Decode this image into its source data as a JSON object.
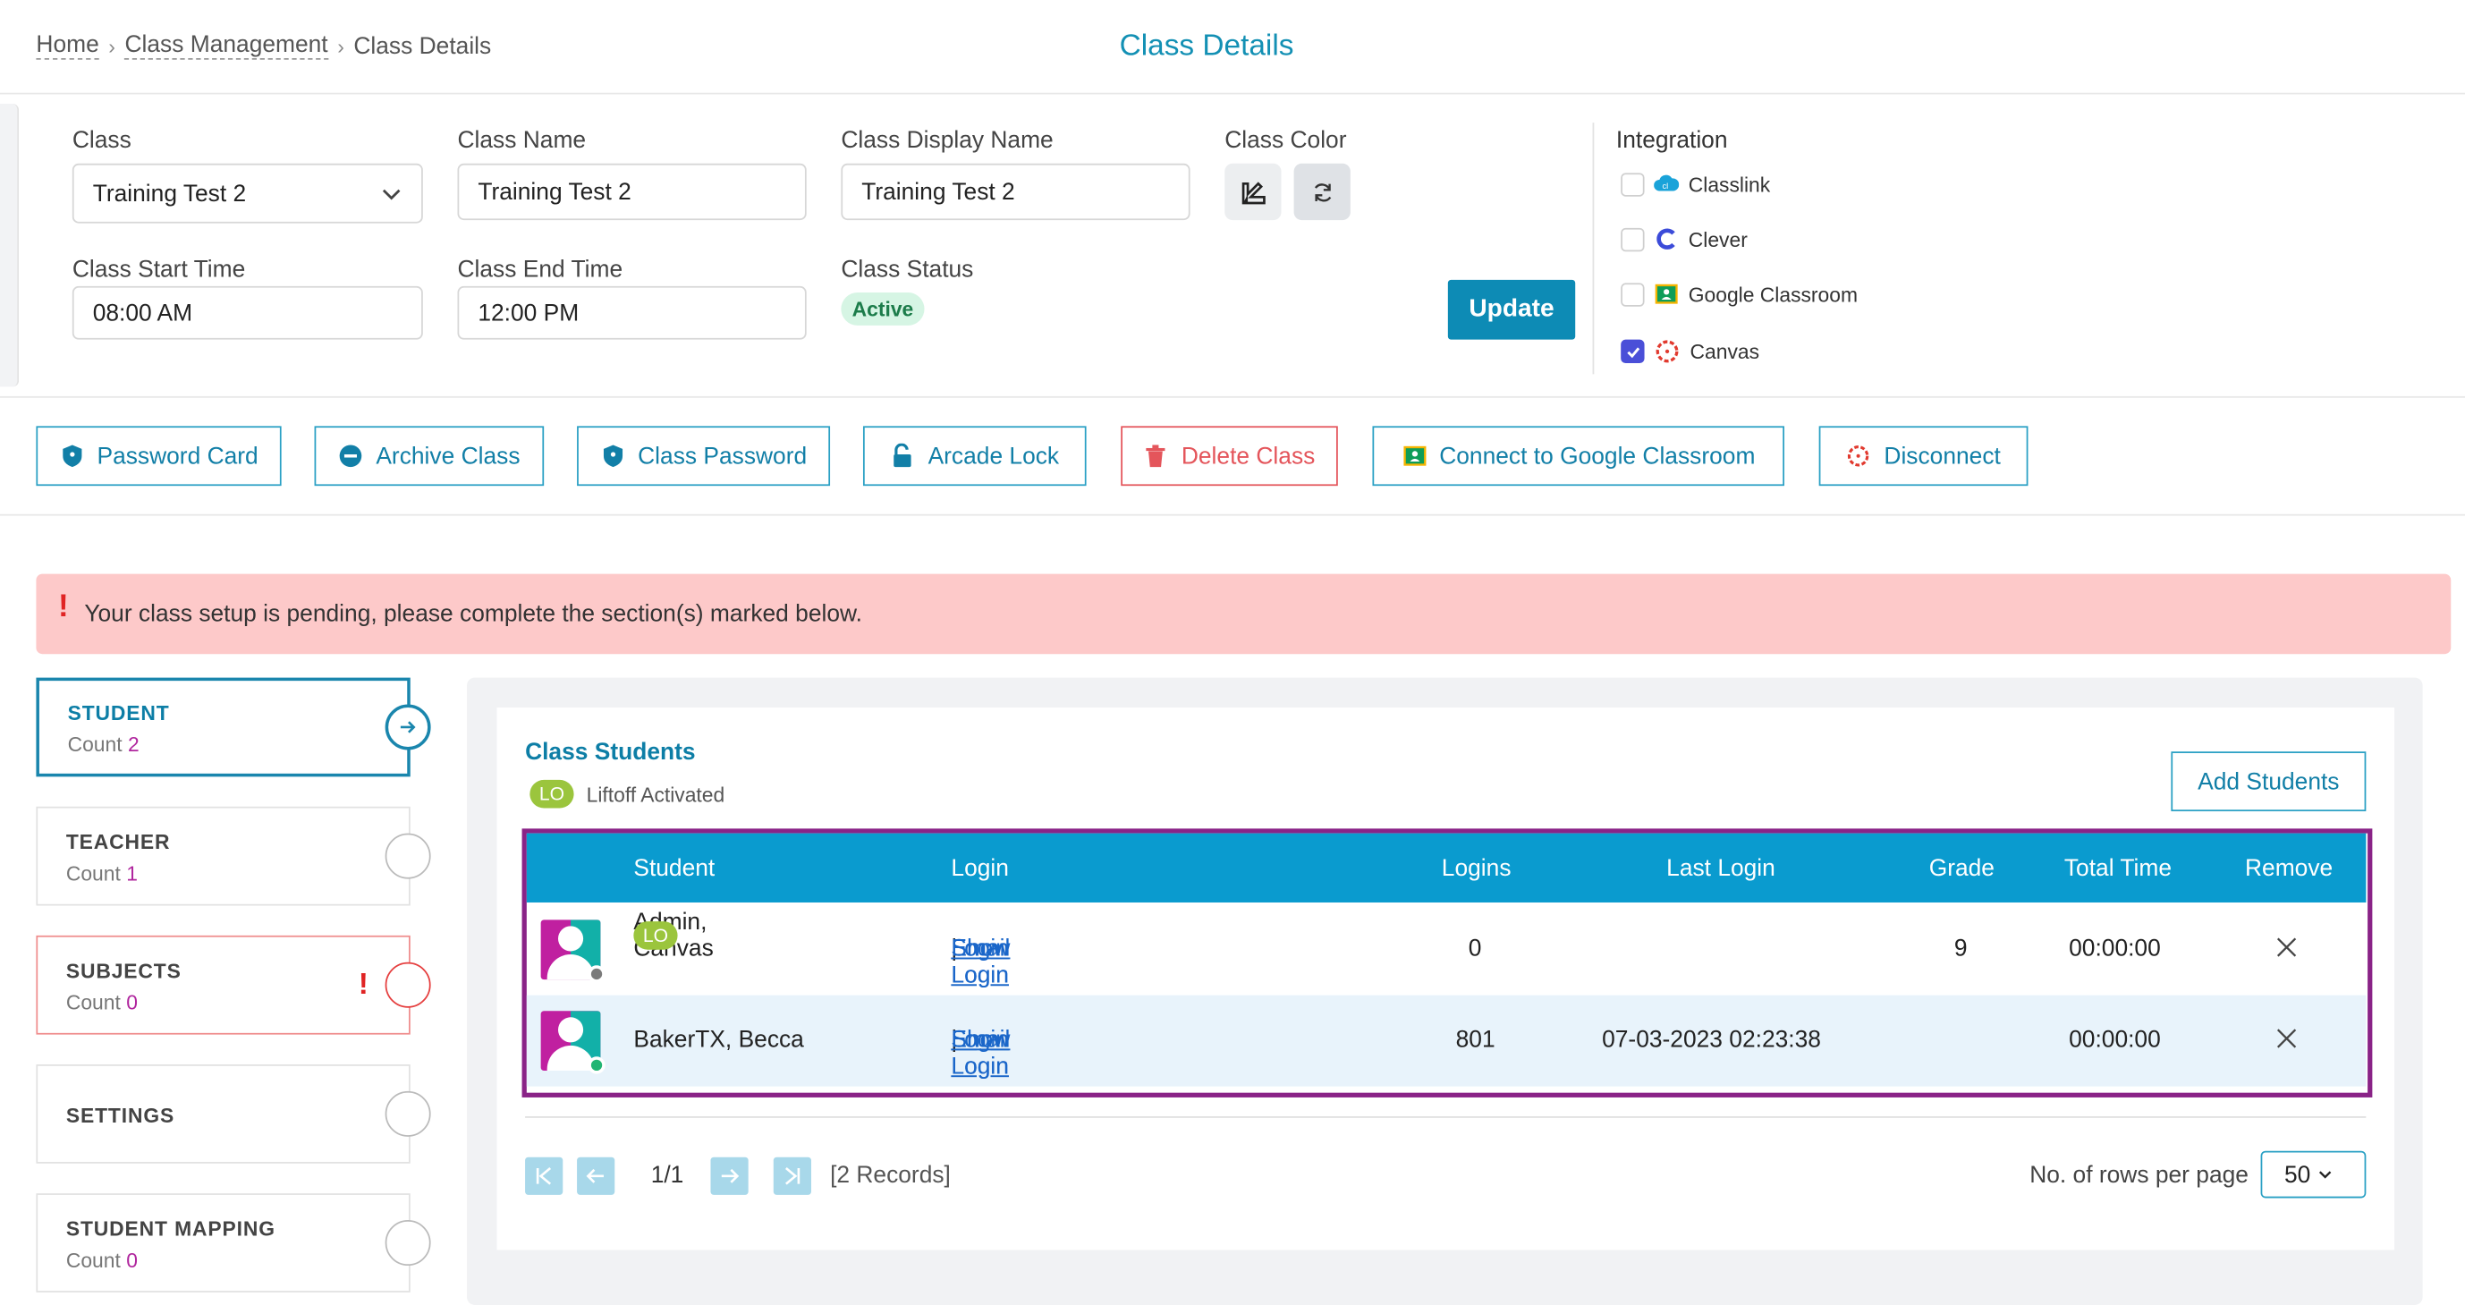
{
  "breadcrumb": {
    "home": "Home",
    "class_management": "Class Management",
    "current": "Class Details"
  },
  "page_title": "Class Details",
  "form": {
    "class_label": "Class",
    "class_value": "Training Test 2",
    "class_name_label": "Class Name",
    "class_name_value": "Training Test 2",
    "display_name_label": "Class Display Name",
    "display_name_value": "Training Test 2",
    "color_label": "Class Color",
    "start_label": "Class Start Time",
    "start_value": "08:00 AM",
    "end_label": "Class End Time",
    "end_value": "12:00 PM",
    "status_label": "Class Status",
    "status_value": "Active",
    "update_label": "Update"
  },
  "integration": {
    "title": "Integration",
    "items": [
      {
        "label": "Classlink",
        "checked": false
      },
      {
        "label": "Clever",
        "checked": false
      },
      {
        "label": "Google Classroom",
        "checked": false
      },
      {
        "label": "Canvas",
        "checked": true
      }
    ]
  },
  "actions": [
    "Password Card",
    "Archive Class",
    "Class Password",
    "Arcade Lock",
    "Delete Class",
    "Connect to Google Classroom",
    "Disconnect"
  ],
  "alert": "Your class setup is pending, please complete the section(s) marked below.",
  "tabs": [
    {
      "title": "STUDENT",
      "count_label": "Count",
      "count": "2"
    },
    {
      "title": "TEACHER",
      "count_label": "Count",
      "count": "1"
    },
    {
      "title": "SUBJECTS",
      "count_label": "Count",
      "count": "0"
    },
    {
      "title": "SETTINGS"
    },
    {
      "title": "STUDENT MAPPING",
      "count_label": "Count",
      "count": "0"
    }
  ],
  "students": {
    "title": "Class Students",
    "lo_badge": "LO",
    "lo_text": "Liftoff Activated",
    "add_label": "Add Students",
    "columns": [
      "Student",
      "Login",
      "Logins",
      "Last Login",
      "Grade",
      "Total Time",
      "Remove"
    ],
    "rows": [
      {
        "name": "Admin, Canvas",
        "lo": "LO",
        "login": "Login",
        "show_login": "Show Login",
        "email_login": "Email Login",
        "logins": "0",
        "last_login": "",
        "grade": "9",
        "total_time": "00:00:00",
        "status_color": "#7b7b7b"
      },
      {
        "name": "BakerTX, Becca",
        "lo": "",
        "login": "Login",
        "show_login": "Show Login",
        "email_login": "Email Login",
        "logins": "801",
        "last_login": "07-03-2023 02:23:38",
        "grade": "",
        "total_time": "00:00:00",
        "status_color": "#22b573"
      }
    ],
    "sep": "|"
  },
  "pagination": {
    "page": "1/1",
    "records": "[2 Records]",
    "rows_label": "No. of rows per page",
    "rows_value": "50"
  }
}
